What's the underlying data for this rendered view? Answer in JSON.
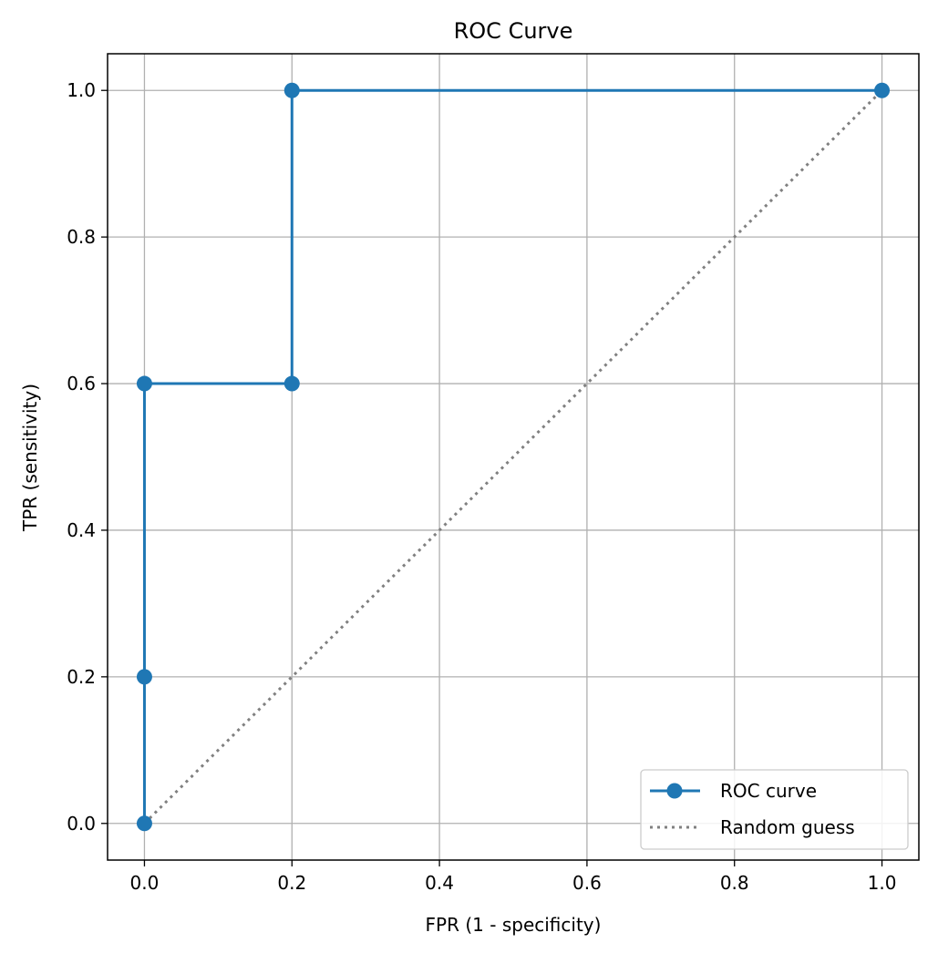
{
  "chart_data": {
    "type": "line",
    "title": "ROC Curve",
    "xlabel": "FPR (1 - specificity)",
    "ylabel": "TPR (sensitivity)",
    "xlim": [
      -0.05,
      1.05
    ],
    "ylim": [
      -0.05,
      1.05
    ],
    "xticks": [
      0.0,
      0.2,
      0.4,
      0.6,
      0.8,
      1.0
    ],
    "yticks": [
      0.0,
      0.2,
      0.4,
      0.6,
      0.8,
      1.0
    ],
    "xtick_labels": [
      "0.0",
      "0.2",
      "0.4",
      "0.6",
      "0.8",
      "1.0"
    ],
    "ytick_labels": [
      "0.0",
      "0.2",
      "0.4",
      "0.6",
      "0.8",
      "1.0"
    ],
    "grid": true,
    "legend_position": "bottom-right",
    "series": [
      {
        "name": "ROC curve",
        "style": "solid-with-markers",
        "color": "#1f77b4",
        "x": [
          0.0,
          0.0,
          0.0,
          0.2,
          0.2,
          1.0
        ],
        "y": [
          0.0,
          0.2,
          0.6,
          0.6,
          1.0,
          1.0
        ]
      },
      {
        "name": "Random guess",
        "style": "dotted",
        "color": "#808080",
        "x": [
          0.0,
          1.0
        ],
        "y": [
          0.0,
          1.0
        ]
      }
    ]
  }
}
